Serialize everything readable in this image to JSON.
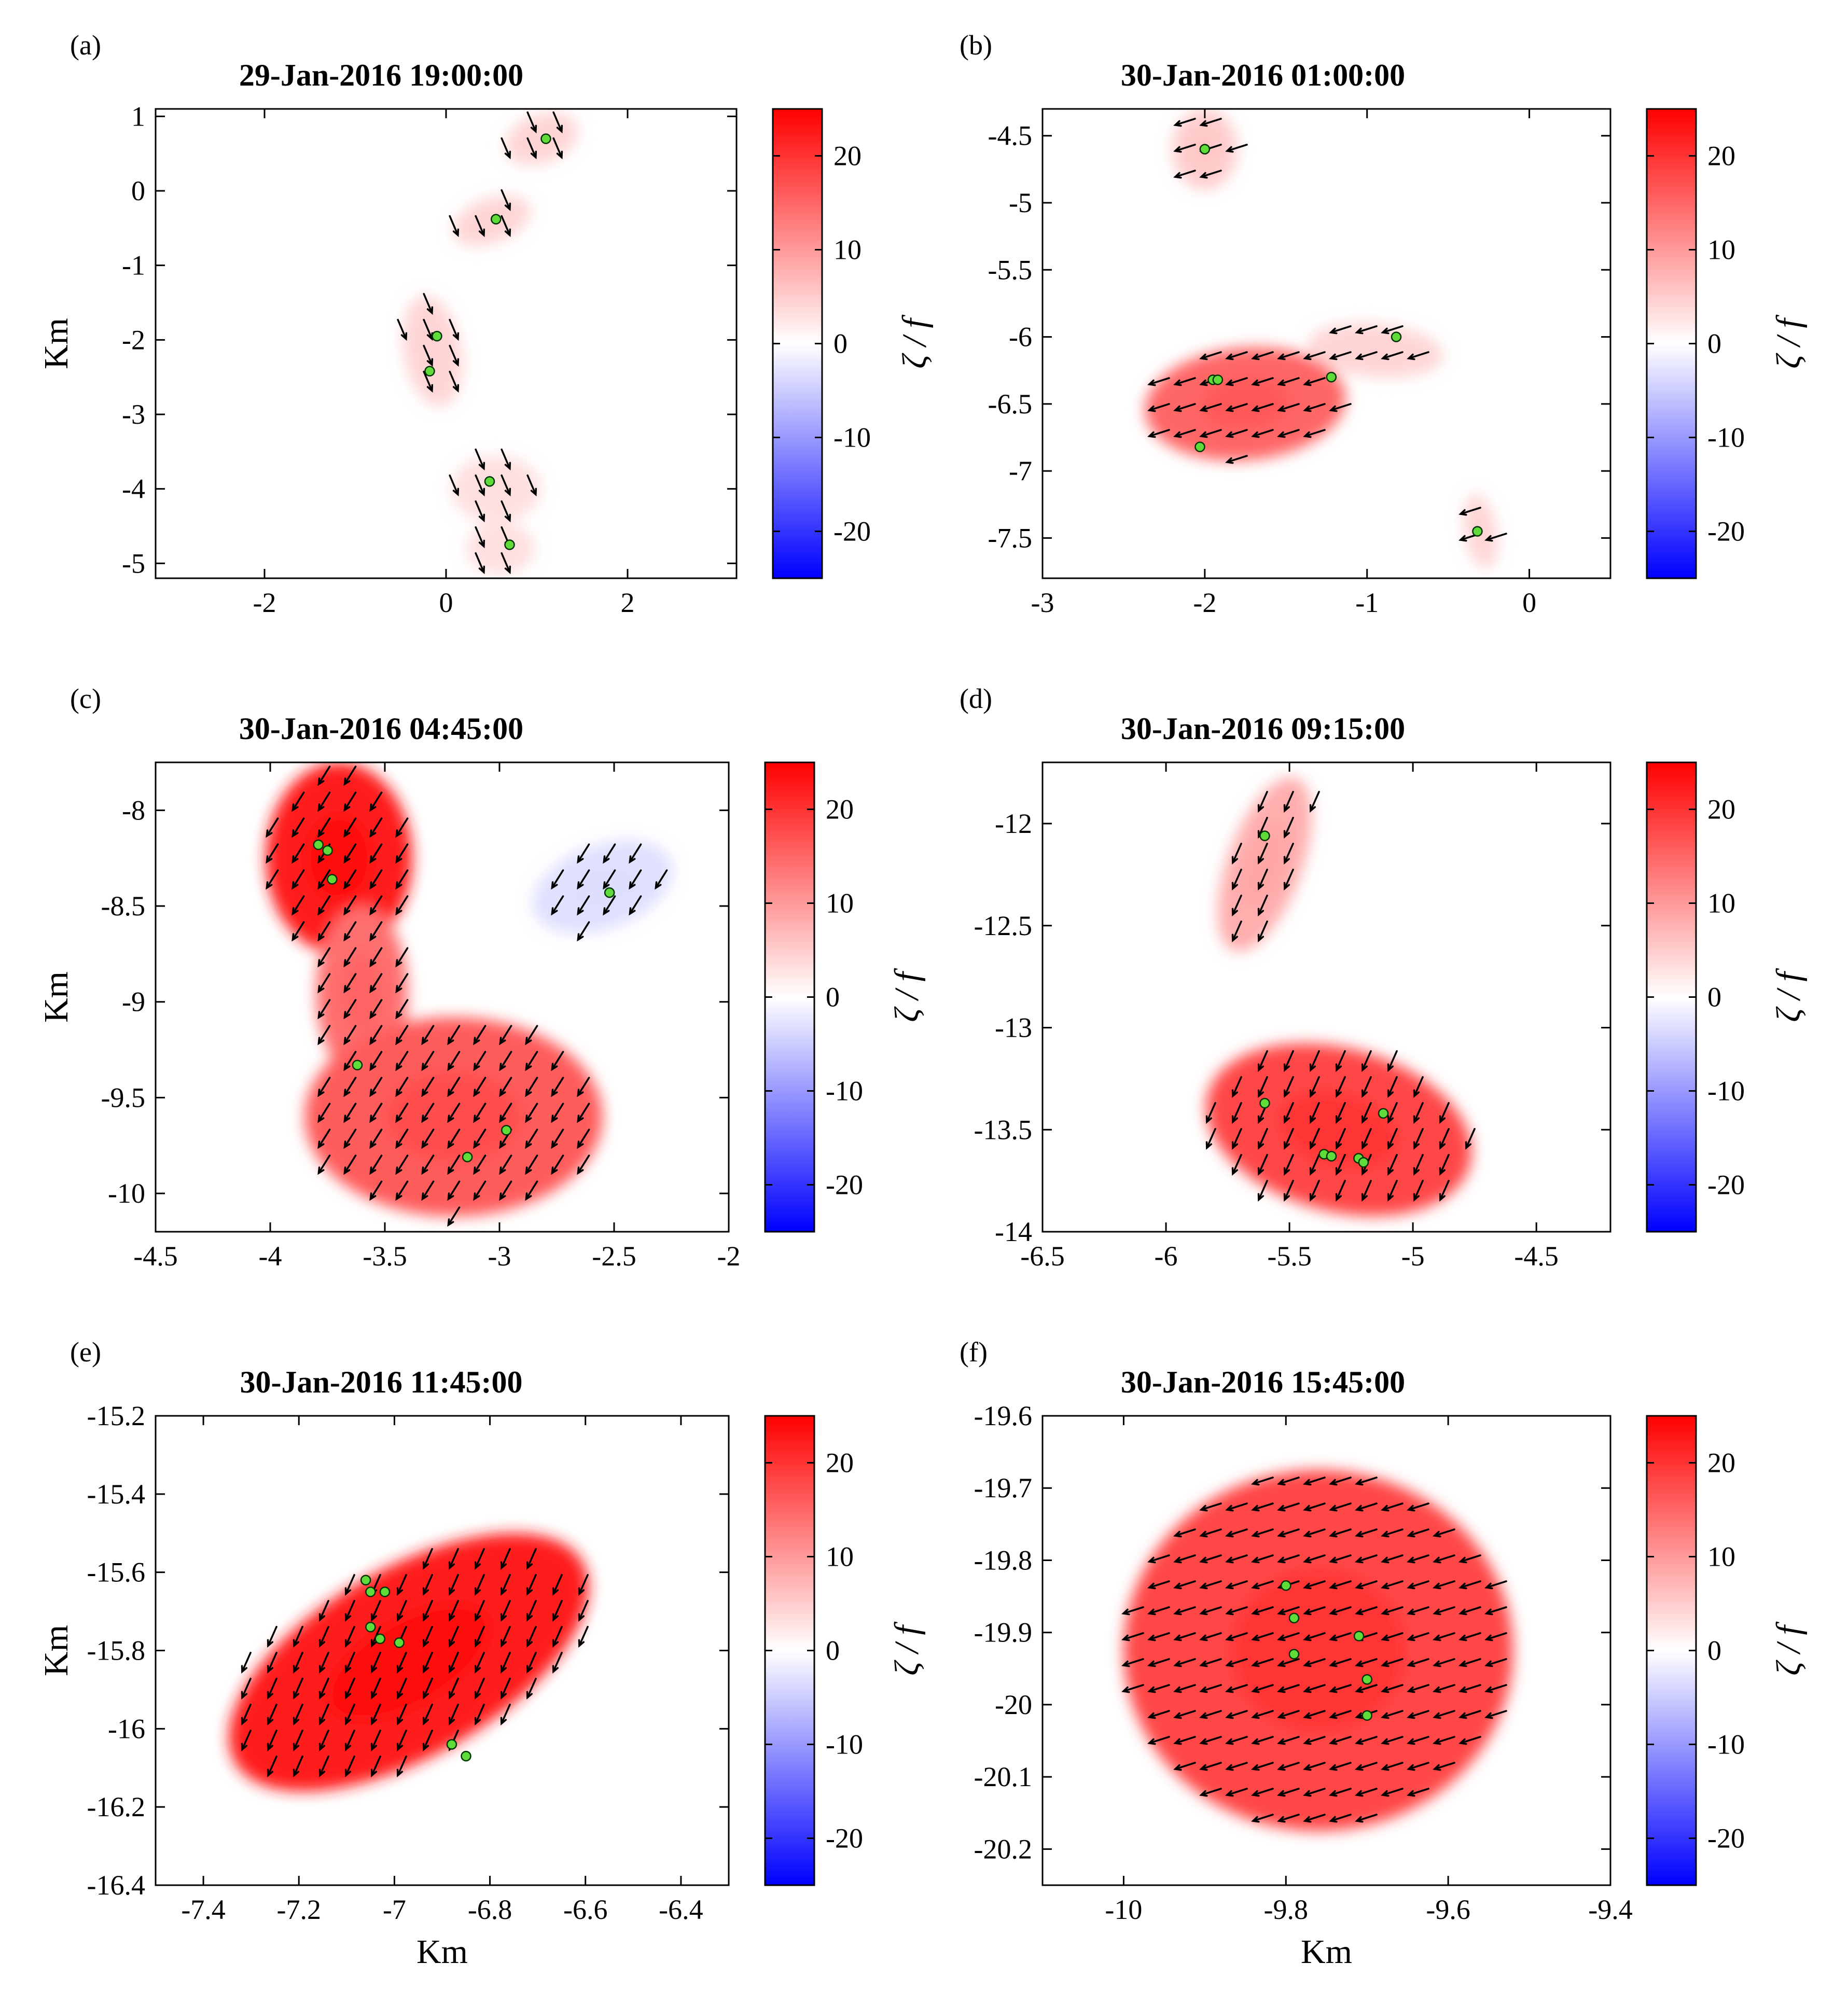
{
  "colors": {
    "positive": "#ff0000",
    "negative": "#0000ff",
    "arrow": "#000000",
    "sensor_fill": "#5fdc3a",
    "sensor_edge": "#003300"
  },
  "chart_data": [
    {
      "id": "a",
      "type": "heatmap",
      "panel_label": "(a)",
      "title": "29-Jan-2016 19:00:00",
      "xlabel": "",
      "ylabel": "Km",
      "xlim": [
        -3.2,
        3.2
      ],
      "ylim": [
        -5.2,
        1.1
      ],
      "xticks": [
        -2,
        0,
        2
      ],
      "xticklabels": [
        "-2",
        "0",
        "2"
      ],
      "yticks": [
        1,
        0,
        -1,
        -2,
        -3,
        -4,
        -5
      ],
      "yticklabels": [
        "1",
        "0",
        "-1",
        "-2",
        "-3",
        "-4",
        "-5"
      ],
      "colorbar": {
        "label": "ζ / f",
        "lim": [
          -25,
          25
        ],
        "ticks": [
          20,
          10,
          0,
          -10,
          -20
        ],
        "ticklabels": [
          "20",
          "10",
          "0",
          "-10",
          "-20"
        ]
      },
      "regions": [
        {
          "cx": 1.05,
          "cy": 0.7,
          "rx": 0.42,
          "ry": 0.33,
          "rot": 20,
          "vort": 4
        },
        {
          "cx": 0.5,
          "cy": -0.4,
          "rx": 0.45,
          "ry": 0.3,
          "rot": 20,
          "vort": 4
        },
        {
          "cx": -0.15,
          "cy": -2.15,
          "rx": 0.32,
          "ry": 0.75,
          "rot": 10,
          "vort": 4
        },
        {
          "cx": 0.55,
          "cy": -4.0,
          "rx": 0.5,
          "ry": 0.45,
          "rot": 0,
          "vort": 3
        },
        {
          "cx": 0.6,
          "cy": -4.8,
          "rx": 0.38,
          "ry": 0.35,
          "rot": 0,
          "vort": 3
        }
      ],
      "flow": {
        "u": 0.3,
        "v": -0.7,
        "swirl": 0
      },
      "sensors": [
        [
          1.1,
          0.7
        ],
        [
          0.55,
          -0.38
        ],
        [
          -0.1,
          -1.95
        ],
        [
          -0.18,
          -2.42
        ],
        [
          0.48,
          -3.9
        ],
        [
          0.7,
          -4.75
        ]
      ]
    },
    {
      "id": "b",
      "type": "heatmap",
      "panel_label": "(b)",
      "title": "30-Jan-2016 01:00:00",
      "xlabel": "",
      "ylabel": "",
      "xlim": [
        -3,
        0.5
      ],
      "ylim": [
        -7.8,
        -4.3
      ],
      "xticks": [
        -3,
        -2,
        -1,
        0
      ],
      "xticklabels": [
        "-3",
        "-2",
        "-1",
        "0"
      ],
      "yticks": [
        -4.5,
        -5,
        -5.5,
        -6,
        -6.5,
        -7,
        -7.5
      ],
      "yticklabels": [
        "-4.5",
        "-5",
        "-5.5",
        "-6",
        "-6.5",
        "-7",
        "-7.5"
      ],
      "colorbar": {
        "label": "ζ / f",
        "lim": [
          -25,
          25
        ],
        "ticks": [
          20,
          10,
          0,
          -10,
          -20
        ],
        "ticklabels": [
          "20",
          "10",
          "0",
          "-10",
          "-20"
        ]
      },
      "regions": [
        {
          "cx": -2.0,
          "cy": -4.6,
          "rx": 0.2,
          "ry": 0.3,
          "rot": 0,
          "vort": 5
        },
        {
          "cx": -1.75,
          "cy": -6.5,
          "rx": 0.62,
          "ry": 0.42,
          "rot": 5,
          "vort": 15
        },
        {
          "cx": -0.95,
          "cy": -6.1,
          "rx": 0.42,
          "ry": 0.2,
          "rot": -5,
          "vort": 4
        },
        {
          "cx": -0.3,
          "cy": -7.45,
          "rx": 0.1,
          "ry": 0.28,
          "rot": 10,
          "vort": 4
        }
      ],
      "flow": {
        "u": -0.95,
        "v": -0.3,
        "swirl": 0
      },
      "sensors": [
        [
          -2.0,
          -4.6
        ],
        [
          -1.95,
          -6.32
        ],
        [
          -1.92,
          -6.32
        ],
        [
          -1.22,
          -6.3
        ],
        [
          -0.82,
          -6.0
        ],
        [
          -2.03,
          -6.82
        ],
        [
          -0.32,
          -7.45
        ]
      ]
    },
    {
      "id": "c",
      "type": "heatmap",
      "panel_label": "(c)",
      "title": "30-Jan-2016 04:45:00",
      "xlabel": "",
      "ylabel": "Km",
      "xlim": [
        -4.5,
        -2
      ],
      "ylim": [
        -10.2,
        -7.75
      ],
      "xticks": [
        -4.5,
        -4,
        -3.5,
        -3,
        -2.5,
        -2
      ],
      "xticklabels": [
        "-4.5",
        "-4",
        "-3.5",
        "-3",
        "-2.5",
        "-2"
      ],
      "yticks": [
        -8,
        -8.5,
        -9,
        -9.5,
        -10
      ],
      "yticklabels": [
        "-8",
        "-8.5",
        "-9",
        "-9.5",
        "-10"
      ],
      "colorbar": {
        "label": "ζ / f",
        "lim": [
          -25,
          25
        ],
        "ticks": [
          20,
          10,
          0,
          -10,
          -20
        ],
        "ticklabels": [
          "20",
          "10",
          "0",
          "-10",
          "-20"
        ]
      },
      "regions": [
        {
          "cx": -3.7,
          "cy": -8.25,
          "rx": 0.32,
          "ry": 0.5,
          "rot": 0,
          "vort": 22
        },
        {
          "cx": -3.6,
          "cy": -8.95,
          "rx": 0.2,
          "ry": 0.45,
          "rot": 0,
          "vort": 14
        },
        {
          "cx": -3.2,
          "cy": -9.6,
          "rx": 0.65,
          "ry": 0.52,
          "rot": 0,
          "vort": 16
        },
        {
          "cx": -2.55,
          "cy": -8.4,
          "rx": 0.32,
          "ry": 0.22,
          "rot": 20,
          "vort": -3
        }
      ],
      "flow": {
        "u": -0.5,
        "v": -0.8,
        "swirl": 0
      },
      "sensors": [
        [
          -3.79,
          -8.18
        ],
        [
          -3.75,
          -8.21
        ],
        [
          -3.73,
          -8.36
        ],
        [
          -2.52,
          -8.43
        ],
        [
          -3.62,
          -9.33
        ],
        [
          -2.97,
          -9.67
        ],
        [
          -3.14,
          -9.81
        ]
      ]
    },
    {
      "id": "d",
      "type": "heatmap",
      "panel_label": "(d)",
      "title": "30-Jan-2016 09:15:00",
      "xlabel": "",
      "ylabel": "",
      "xlim": [
        -6.5,
        -4.2
      ],
      "ylim": [
        -14,
        -11.7
      ],
      "xticks": [
        -6.5,
        -6,
        -5.5,
        -5,
        -4.5
      ],
      "xticklabels": [
        "-6.5",
        "-6",
        "-5.5",
        "-5",
        "-4.5"
      ],
      "yticks": [
        -12,
        -12.5,
        -13,
        -13.5,
        -14
      ],
      "yticklabels": [
        "-12",
        "-12.5",
        "-13",
        "-13.5",
        "-14"
      ],
      "colorbar": {
        "label": "ζ / f",
        "lim": [
          -25,
          25
        ],
        "ticks": [
          20,
          10,
          0,
          -10,
          -20
        ],
        "ticklabels": [
          "20",
          "10",
          "0",
          "-10",
          "-20"
        ]
      },
      "regions": [
        {
          "cx": -5.6,
          "cy": -12.2,
          "rx": 0.15,
          "ry": 0.45,
          "rot": -20,
          "vort": 8
        },
        {
          "cx": -5.3,
          "cy": -13.5,
          "rx": 0.55,
          "ry": 0.4,
          "rot": -15,
          "vort": 18
        }
      ],
      "flow": {
        "u": -0.4,
        "v": -0.9,
        "swirl": 0
      },
      "sensors": [
        [
          -5.6,
          -12.06
        ],
        [
          -5.6,
          -13.37
        ],
        [
          -5.12,
          -13.42
        ],
        [
          -5.36,
          -13.62
        ],
        [
          -5.33,
          -13.63
        ],
        [
          -5.22,
          -13.64
        ],
        [
          -5.2,
          -13.66
        ]
      ]
    },
    {
      "id": "e",
      "type": "heatmap",
      "panel_label": "(e)",
      "title": "30-Jan-2016 11:45:00",
      "xlabel": "Km",
      "ylabel": "Km",
      "xlim": [
        -7.5,
        -6.3
      ],
      "ylim": [
        -16.4,
        -15.2
      ],
      "xticks": [
        -7.4,
        -7.2,
        -7,
        -6.8,
        -6.6,
        -6.4
      ],
      "xticklabels": [
        "-7.4",
        "-7.2",
        "-7",
        "-6.8",
        "-6.6",
        "-6.4"
      ],
      "yticks": [
        -15.2,
        -15.4,
        -15.6,
        -15.8,
        -16,
        -16.2,
        -16.4
      ],
      "yticklabels": [
        "-15.2",
        "-15.4",
        "-15.6",
        "-15.8",
        "-16",
        "-16.2",
        "-16.4"
      ],
      "colorbar": {
        "label": "ζ / f",
        "lim": [
          -25,
          25
        ],
        "ticks": [
          20,
          10,
          0,
          -10,
          -20
        ],
        "ticklabels": [
          "20",
          "10",
          "0",
          "-10",
          "-20"
        ]
      },
      "regions": [
        {
          "cx": -6.97,
          "cy": -15.83,
          "rx": 0.42,
          "ry": 0.24,
          "rot": 30,
          "vort": 22
        }
      ],
      "flow": {
        "u": -0.4,
        "v": -0.9,
        "swirl": 0
      },
      "sensors": [
        [
          -7.06,
          -15.62
        ],
        [
          -7.05,
          -15.65
        ],
        [
          -7.02,
          -15.65
        ],
        [
          -7.05,
          -15.74
        ],
        [
          -7.03,
          -15.77
        ],
        [
          -6.99,
          -15.78
        ],
        [
          -6.88,
          -16.04
        ],
        [
          -6.85,
          -16.07
        ]
      ]
    },
    {
      "id": "f",
      "type": "heatmap",
      "panel_label": "(f)",
      "title": "30-Jan-2016 15:45:00",
      "xlabel": "Km",
      "ylabel": "",
      "xlim": [
        -10.1,
        -9.4
      ],
      "ylim": [
        -20.25,
        -19.6
      ],
      "xticks": [
        -10,
        -9.8,
        -9.6,
        -9.4
      ],
      "xticklabels": [
        "-10",
        "-9.8",
        "-9.6",
        "-9.4"
      ],
      "yticks": [
        -19.6,
        -19.7,
        -19.8,
        -19.9,
        -20,
        -20.1,
        -20.2
      ],
      "yticklabels": [
        "-19.6",
        "-19.7",
        "-19.8",
        "-19.9",
        "-20",
        "-20.1",
        "-20.2"
      ],
      "colorbar": {
        "label": "ζ / f",
        "lim": [
          -25,
          25
        ],
        "ticks": [
          20,
          10,
          0,
          -10,
          -20
        ],
        "ticklabels": [
          "20",
          "10",
          "0",
          "-10",
          "-20"
        ]
      },
      "regions": [
        {
          "cx": -9.76,
          "cy": -19.925,
          "rx": 0.24,
          "ry": 0.25,
          "rot": 0,
          "vort": 18
        }
      ],
      "flow": {
        "u": -0.95,
        "v": -0.3,
        "swirl": 0
      },
      "sensors": [
        [
          -9.8,
          -19.835
        ],
        [
          -9.79,
          -19.88
        ],
        [
          -9.71,
          -19.905
        ],
        [
          -9.79,
          -19.93
        ],
        [
          -9.7,
          -19.965
        ],
        [
          -9.7,
          -20.015
        ]
      ]
    }
  ]
}
